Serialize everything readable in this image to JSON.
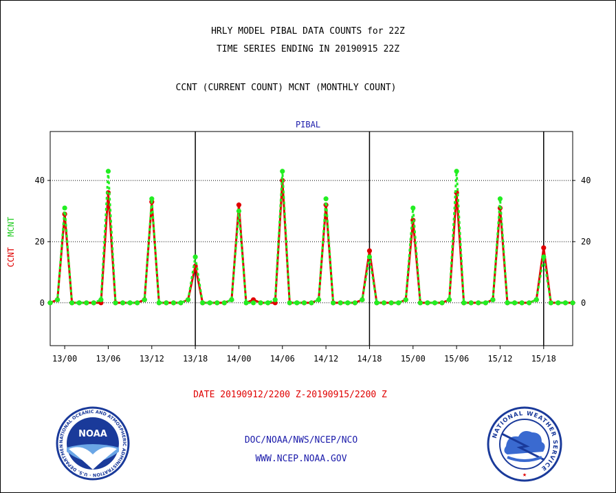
{
  "header": {
    "line1": "HRLY MODEL PIBAL DATA COUNTS for 22Z",
    "line2": "TIME SERIES ENDING IN 20190915 22Z",
    "line3": "CCNT (CURRENT COUNT) MCNT (MONTHLY COUNT)"
  },
  "footer": {
    "date_range": "DATE 20190912/2200 Z-20190915/2200 Z",
    "org": "DOC/NOAA/NWS/NCEP/NCO",
    "url": "WWW.NCEP.NOAA.GOV"
  },
  "logos": {
    "noaa": {
      "center_text": "NOAA",
      "ring_text": "NATIONAL OCEANIC AND ATMOSPHERIC ADMINISTRATION · U.S. DEPARTMENT OF COMMERCE"
    },
    "nws": {
      "ring_text": "NATIONAL WEATHER SERVICE"
    }
  },
  "colors": {
    "ccnt": "#e00000",
    "mcnt": "#22ee22",
    "title_blue": "#1a1aaa"
  },
  "chart_data": {
    "type": "line",
    "title": "PIBAL",
    "ylabel_parts": [
      "CCNT",
      "MCNT"
    ],
    "ylim": [
      -14,
      56
    ],
    "yticks": [
      0,
      20,
      40
    ],
    "y_gridlines": [
      0,
      20,
      40
    ],
    "xlim": [
      -2,
      70
    ],
    "xticks": [
      {
        "x": 0,
        "label": "13/00"
      },
      {
        "x": 6,
        "label": "13/06"
      },
      {
        "x": 12,
        "label": "13/12"
      },
      {
        "x": 18,
        "label": "13/18"
      },
      {
        "x": 24,
        "label": "14/00"
      },
      {
        "x": 30,
        "label": "14/06"
      },
      {
        "x": 36,
        "label": "14/12"
      },
      {
        "x": 42,
        "label": "14/18"
      },
      {
        "x": 48,
        "label": "15/00"
      },
      {
        "x": 54,
        "label": "15/06"
      },
      {
        "x": 60,
        "label": "15/12"
      },
      {
        "x": 66,
        "label": "15/18"
      }
    ],
    "day_dividers": [
      18,
      42,
      66
    ],
    "x": [
      -2,
      -1,
      0,
      1,
      2,
      3,
      4,
      5,
      6,
      7,
      8,
      9,
      10,
      11,
      12,
      13,
      14,
      15,
      16,
      17,
      18,
      19,
      20,
      21,
      22,
      23,
      24,
      25,
      26,
      27,
      28,
      29,
      30,
      31,
      32,
      33,
      34,
      35,
      36,
      37,
      38,
      39,
      40,
      41,
      42,
      43,
      44,
      45,
      46,
      47,
      48,
      49,
      50,
      51,
      52,
      53,
      54,
      55,
      56,
      57,
      58,
      59,
      60,
      61,
      62,
      63,
      64,
      65,
      66,
      67,
      68,
      69,
      70
    ],
    "series": [
      {
        "name": "CCNT",
        "values": [
          0,
          1,
          29,
          0,
          0,
          0,
          0,
          0,
          36,
          0,
          0,
          0,
          0,
          1,
          33,
          0,
          0,
          0,
          0,
          1,
          12,
          0,
          0,
          0,
          0,
          1,
          32,
          0,
          1,
          0,
          0,
          0,
          40,
          0,
          0,
          0,
          0,
          1,
          32,
          0,
          0,
          0,
          0,
          1,
          17,
          0,
          0,
          0,
          0,
          1,
          27,
          0,
          0,
          0,
          0,
          1,
          36,
          0,
          0,
          0,
          0,
          1,
          31,
          0,
          0,
          0,
          0,
          1,
          18,
          0,
          0,
          0,
          0
        ]
      },
      {
        "name": "MCNT",
        "values": [
          0,
          1,
          31,
          0,
          0,
          0,
          0,
          1,
          43,
          0,
          0,
          0,
          0,
          1,
          34,
          0,
          0,
          0,
          0,
          1,
          15,
          0,
          0,
          0,
          0,
          1,
          30,
          0,
          0,
          0,
          0,
          1,
          43,
          0,
          0,
          0,
          0,
          1,
          34,
          0,
          0,
          0,
          0,
          1,
          15,
          0,
          0,
          0,
          0,
          1,
          31,
          0,
          0,
          0,
          0,
          1,
          43,
          0,
          0,
          0,
          0,
          1,
          34,
          0,
          0,
          0,
          0,
          1,
          15,
          0,
          0,
          0,
          0
        ]
      }
    ]
  }
}
